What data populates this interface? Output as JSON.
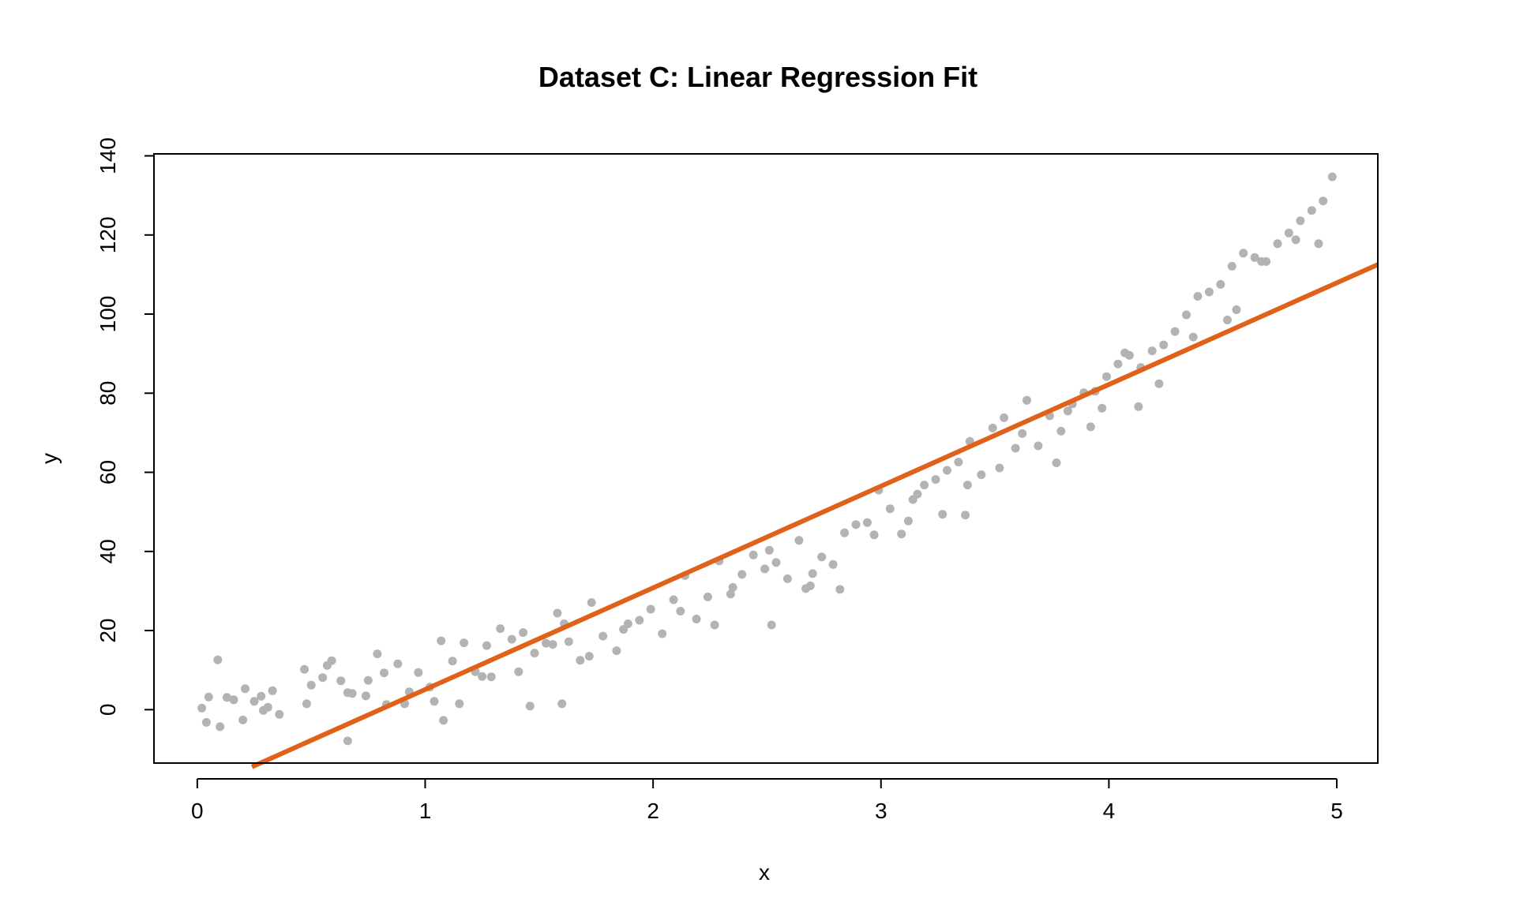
{
  "chart_data": {
    "type": "scatter",
    "title": "Dataset C: Linear Regression Fit",
    "xlabel": "x",
    "ylabel": "y",
    "xlim": [
      -0.19,
      5.18
    ],
    "ylim": [
      -13.5,
      140.5
    ],
    "x_ticks": [
      0,
      1,
      2,
      3,
      4,
      5
    ],
    "y_ticks": [
      0,
      20,
      40,
      60,
      80,
      100,
      120,
      140
    ],
    "x_tick_labels": [
      "0",
      "1",
      "2",
      "3",
      "4",
      "5"
    ],
    "y_tick_labels": [
      "0",
      "20",
      "40",
      "60",
      "80",
      "100",
      "120",
      "140"
    ],
    "grid": false,
    "legend": "none",
    "colors": {
      "points": "#b3b3b3",
      "fit_line": "#e0611a"
    },
    "fit_line": {
      "intercept": -20.6,
      "slope": 25.7,
      "x_range": [
        0.24,
        5.18
      ]
    },
    "series": [
      {
        "marker": "filled-circle",
        "x": [
          0.02,
          0.05,
          0.09,
          0.13,
          0.16,
          0.2,
          0.25,
          0.29,
          0.33,
          0.36,
          0.04,
          0.1,
          0.21,
          0.31,
          0.47,
          0.5,
          0.55,
          0.59,
          0.63,
          0.68,
          0.74,
          0.79,
          0.83,
          0.88,
          0.93,
          0.97,
          1.02,
          1.07,
          1.12,
          1.17,
          1.22,
          1.27,
          1.33,
          1.38,
          1.43,
          1.48,
          1.53,
          1.58,
          1.63,
          1.68,
          1.73,
          1.78,
          1.84,
          1.89,
          1.94,
          1.99,
          2.04,
          2.09,
          2.14,
          2.19,
          2.24,
          2.29,
          2.34,
          2.39,
          2.44,
          2.49,
          2.54,
          2.59,
          2.64,
          2.69,
          2.74,
          2.79,
          2.84,
          2.89,
          2.94,
          2.99,
          3.04,
          3.09,
          3.14,
          3.19,
          3.24,
          3.29,
          3.34,
          3.39,
          3.44,
          3.49,
          3.54,
          3.59,
          3.64,
          3.69,
          3.74,
          3.79,
          3.84,
          3.89,
          3.94,
          3.99,
          4.04,
          4.09,
          4.14,
          4.19,
          4.24,
          4.29,
          4.34,
          4.39,
          4.44,
          4.49,
          4.54,
          4.59,
          4.64,
          4.69,
          4.74,
          4.79,
          4.84,
          4.89,
          4.94,
          4.98,
          0.48,
          0.57,
          0.66,
          0.82,
          0.91,
          1.04,
          1.15,
          1.29,
          1.41,
          1.56,
          1.61,
          1.72,
          1.87,
          2.12,
          2.27,
          2.52,
          2.67,
          2.82,
          2.97,
          3.12,
          3.27,
          3.37,
          3.52,
          3.62,
          3.77,
          3.92,
          4.07,
          4.22,
          4.37,
          4.52,
          4.67,
          4.82,
          4.92,
          0.66,
          1.08,
          1.6,
          2.51,
          3.38,
          4.13,
          1.25,
          2.7,
          3.82,
          4.56,
          0.28,
          0.75,
          1.46,
          2.35,
          3.16,
          3.97
        ],
        "y": [
          0.4,
          3.2,
          12.6,
          3.1,
          2.5,
          -2.6,
          2.1,
          -0.2,
          4.8,
          -1.2,
          -3.2,
          -4.3,
          5.3,
          0.6,
          10.2,
          6.2,
          8.1,
          12.4,
          7.3,
          4.1,
          3.5,
          14.1,
          1.3,
          11.6,
          4.5,
          9.4,
          5.7,
          17.4,
          12.3,
          16.9,
          9.6,
          16.2,
          20.5,
          17.8,
          19.5,
          14.3,
          16.8,
          24.4,
          17.2,
          12.5,
          27.1,
          18.6,
          14.9,
          21.7,
          22.6,
          25.4,
          19.2,
          27.8,
          33.9,
          22.9,
          28.5,
          37.6,
          29.2,
          34.2,
          39.1,
          35.6,
          37.2,
          33.1,
          42.8,
          31.3,
          38.6,
          36.7,
          44.7,
          46.8,
          47.3,
          55.5,
          50.8,
          44.4,
          53.1,
          56.8,
          58.2,
          60.5,
          62.6,
          67.8,
          59.4,
          71.2,
          73.8,
          66.1,
          78.2,
          66.7,
          74.3,
          70.4,
          77.3,
          80.1,
          80.5,
          84.2,
          87.4,
          89.6,
          86.5,
          90.7,
          92.2,
          95.6,
          99.8,
          104.5,
          105.6,
          107.5,
          112.1,
          115.4,
          114.3,
          113.3,
          117.8,
          120.5,
          123.6,
          126.2,
          128.6,
          134.7,
          1.5,
          11.2,
          4.3,
          9.3,
          1.5,
          2.1,
          1.5,
          8.3,
          9.6,
          16.5,
          21.7,
          13.5,
          20.3,
          24.9,
          21.4,
          21.4,
          30.6,
          30.4,
          44.2,
          47.7,
          49.4,
          49.2,
          61.1,
          69.8,
          62.4,
          71.5,
          90.2,
          82.4,
          94.2,
          98.5,
          113.3,
          118.8,
          117.8,
          -7.9,
          -2.7,
          1.5,
          40.3,
          56.8,
          76.6,
          8.4,
          34.4,
          75.5,
          101.1,
          3.4,
          7.4,
          0.9,
          30.9,
          54.5,
          76.2
        ]
      }
    ]
  }
}
